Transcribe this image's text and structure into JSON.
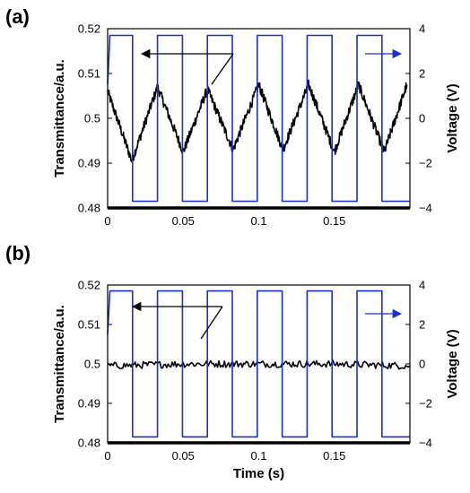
{
  "chart_data": [
    {
      "type": "line",
      "panel_label": "(a)",
      "xlabel": "",
      "ylabel": "Transmittance/a.u.",
      "y2label": "Voltage (V)",
      "xlim": [
        0,
        0.2
      ],
      "ylim": [
        0.48,
        0.52
      ],
      "y2lim": [
        -4,
        4
      ],
      "xticks": [
        "0",
        "0.05",
        "0.1",
        "0.15"
      ],
      "yticks": [
        "0.48",
        "0.49",
        "0.5",
        "0.51",
        "0.52"
      ],
      "y2ticks": [
        "-4",
        "-2",
        "0",
        "2",
        "4"
      ],
      "grid": false,
      "series": [
        {
          "axis": "left",
          "color": "#000000",
          "description": "transmittance response, roughly triangular oscillation",
          "x": [
            0.0,
            0.016,
            0.033,
            0.05,
            0.066,
            0.083,
            0.1,
            0.116,
            0.133,
            0.15,
            0.166,
            0.183,
            0.198
          ],
          "y": [
            0.506,
            0.4905,
            0.507,
            0.4925,
            0.5065,
            0.493,
            0.5075,
            0.493,
            0.5075,
            0.4925,
            0.5075,
            0.4925,
            0.5075
          ]
        },
        {
          "axis": "right",
          "color": "#1a2fd6",
          "description": "square-wave drive voltage",
          "x": [
            0.0,
            0.0015,
            0.0165,
            0.0165,
            0.033,
            0.033,
            0.0495,
            0.0495,
            0.066,
            0.066,
            0.0825,
            0.0825,
            0.099,
            0.099,
            0.1155,
            0.1155,
            0.132,
            0.132,
            0.1485,
            0.1485,
            0.165,
            0.165,
            0.1815,
            0.1815,
            0.2
          ],
          "y": [
            1.5,
            3.7,
            3.7,
            -3.7,
            -3.7,
            3.7,
            3.7,
            -3.7,
            -3.7,
            3.7,
            3.7,
            -3.7,
            -3.7,
            3.7,
            3.7,
            -3.7,
            -3.7,
            3.7,
            3.7,
            -3.7,
            -3.7,
            3.7,
            3.7,
            -3.7,
            -3.7
          ]
        }
      ]
    },
    {
      "type": "line",
      "panel_label": "(b)",
      "xlabel": "Time (s)",
      "ylabel": "Transmittance/a.u.",
      "y2label": "Voltage (V)",
      "xlim": [
        0,
        0.2
      ],
      "ylim": [
        0.48,
        0.52
      ],
      "y2lim": [
        -4,
        4
      ],
      "xticks": [
        "0",
        "0.05",
        "0.1",
        "0.15"
      ],
      "yticks": [
        "0.48",
        "0.49",
        "0.5",
        "0.51",
        "0.52"
      ],
      "y2ticks": [
        "-4",
        "-2",
        "0",
        "2",
        "4"
      ],
      "grid": false,
      "series": [
        {
          "axis": "left",
          "color": "#000000",
          "description": "transmittance response, flat noisy signal",
          "x": [
            0.0,
            0.05,
            0.1,
            0.15,
            0.2
          ],
          "y": [
            0.4995,
            0.5,
            0.5,
            0.5,
            0.4995
          ]
        },
        {
          "axis": "right",
          "color": "#1a2fd6",
          "description": "square-wave drive voltage",
          "x": [
            0.0,
            0.0015,
            0.0165,
            0.0165,
            0.033,
            0.033,
            0.0495,
            0.0495,
            0.066,
            0.066,
            0.0825,
            0.0825,
            0.099,
            0.099,
            0.1155,
            0.1155,
            0.132,
            0.132,
            0.1485,
            0.1485,
            0.165,
            0.165,
            0.1815,
            0.1815,
            0.2
          ],
          "y": [
            1.5,
            3.7,
            3.7,
            -3.7,
            -3.7,
            3.7,
            3.7,
            -3.7,
            -3.7,
            3.7,
            3.7,
            -3.7,
            -3.7,
            3.7,
            3.7,
            -3.7,
            -3.7,
            3.7,
            3.7,
            -3.7,
            -3.7,
            3.7,
            3.7,
            -3.7,
            -3.7
          ]
        }
      ]
    }
  ]
}
